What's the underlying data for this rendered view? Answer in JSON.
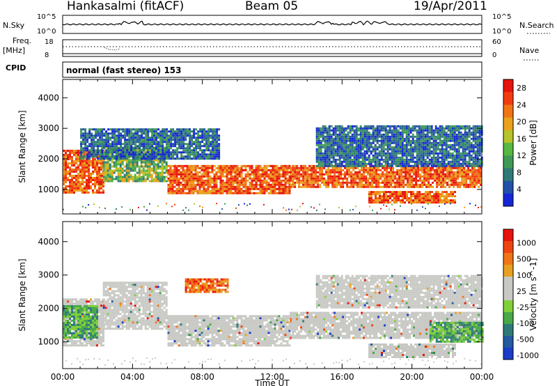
{
  "header": {
    "station": "Hankasalmi (fitACF)",
    "beam": "Beam 05",
    "date": "19/Apr/2011"
  },
  "top_panels": {
    "nsky_label": "N.Sky",
    "nsky_top": "10^5",
    "nsky_bottom": "10^0",
    "nsearch_label": "N.Search",
    "freq_label": "Freq.",
    "freq_unit": "[MHz]",
    "freq_top": "18",
    "freq_bottom": "8",
    "nave_label": "Nave",
    "nave_top": "60",
    "nave_bottom": "0",
    "cpid_label": "CPID",
    "cpid_value": "normal (fast stereo) 153"
  },
  "chart_data": [
    {
      "type": "heatmap",
      "name": "power",
      "ylabel": "Slant Range [km]",
      "ylim": [
        200,
        4600
      ],
      "y_ticks": [
        1000,
        2000,
        3000,
        4000
      ],
      "colorbar_label": "Power [dB]",
      "colorbar_ticks": [
        4,
        8,
        12,
        16,
        20,
        24,
        28
      ],
      "colorbar_colors": [
        "#1626d6",
        "#2451a8",
        "#2f7a76",
        "#3f9a56",
        "#57b842",
        "#b8c22a",
        "#e8a21c",
        "#f07416",
        "#f23c10",
        "#e6140c"
      ],
      "bands": [
        {
          "t0": 0.0,
          "t1": 2.3,
          "r0": 900,
          "r1": 2300,
          "level": "high"
        },
        {
          "t0": 2.3,
          "t1": 6.0,
          "r0": 1300,
          "r1": 2400,
          "level": "mid"
        },
        {
          "t0": 6.0,
          "t1": 13.0,
          "r0": 900,
          "r1": 1800,
          "level": "high"
        },
        {
          "t0": 13.0,
          "t1": 24.0,
          "r0": 1100,
          "r1": 1800,
          "level": "high"
        },
        {
          "t0": 17.5,
          "t1": 22.5,
          "r0": 550,
          "r1": 950,
          "level": "high"
        },
        {
          "t0": 1.0,
          "t1": 9.0,
          "r0": 2000,
          "r1": 3000,
          "level": "low"
        },
        {
          "t0": 14.5,
          "t1": 24.0,
          "r0": 1800,
          "r1": 3100,
          "level": "low"
        }
      ]
    },
    {
      "type": "heatmap",
      "name": "velocity",
      "xlabel": "Time UT",
      "ylabel": "Slant Range [km]",
      "ylim": [
        200,
        4600
      ],
      "y_ticks": [
        1000,
        2000,
        3000,
        4000
      ],
      "x_ticks": [
        "00:00",
        "04:00",
        "08:00",
        "12:00",
        "16:00",
        "20:00",
        "00:00"
      ],
      "colorbar_label": "Velocity [m s^-1]",
      "colorbar_ticks": [
        "1000",
        "500",
        "100",
        "25",
        "-25",
        "-100",
        "-500",
        "-1000"
      ],
      "colorbar_colors": [
        "#1a3cc8",
        "#235aa0",
        "#2f7a78",
        "#49a848",
        "#7fcf3a",
        "#c8c8c4",
        "#c8c8c4",
        "#e8a020",
        "#f07418",
        "#ee4412",
        "#e6140c"
      ],
      "bands": [
        {
          "t0": 0.0,
          "t1": 2.3,
          "r0": 900,
          "r1": 2300,
          "level": "grey"
        },
        {
          "t0": 0.0,
          "t1": 2.0,
          "r0": 1100,
          "r1": 2100,
          "level": "green"
        },
        {
          "t0": 2.3,
          "t1": 6.0,
          "r0": 1400,
          "r1": 2800,
          "level": "grey"
        },
        {
          "t0": 6.0,
          "t1": 13.0,
          "r0": 900,
          "r1": 1800,
          "level": "grey"
        },
        {
          "t0": 13.0,
          "t1": 24.0,
          "r0": 1100,
          "r1": 1900,
          "level": "grey"
        },
        {
          "t0": 7.0,
          "t1": 9.5,
          "r0": 2500,
          "r1": 2900,
          "level": "orange"
        },
        {
          "t0": 17.5,
          "t1": 22.5,
          "r0": 550,
          "r1": 950,
          "level": "grey"
        },
        {
          "t0": 21.0,
          "t1": 24.0,
          "r0": 1000,
          "r1": 1600,
          "level": "green"
        },
        {
          "t0": 14.5,
          "t1": 24.0,
          "r0": 2000,
          "r1": 3000,
          "level": "grey"
        }
      ]
    }
  ]
}
